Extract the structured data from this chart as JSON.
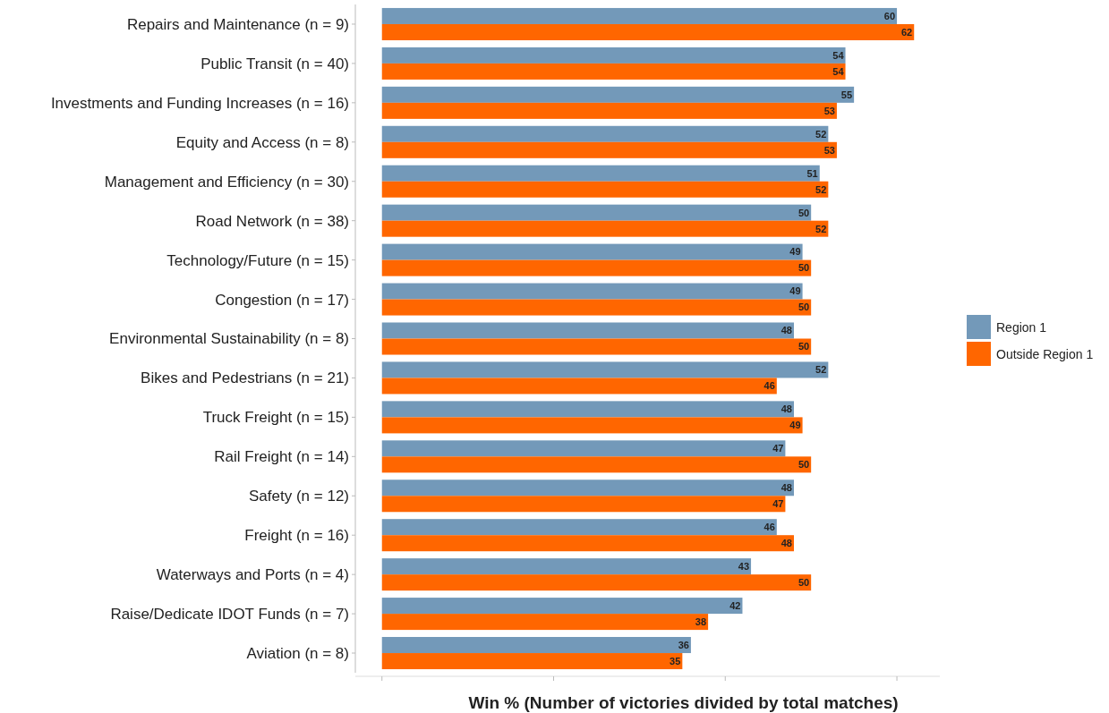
{
  "chart_data": {
    "type": "bar",
    "orientation": "horizontal",
    "xlabel": "Win % (Number of victories divided by total matches)",
    "categories": [
      "Repairs and Maintenance (n = 9)",
      "Public Transit (n = 40)",
      "Investments and Funding Increases (n = 16)",
      "Equity and Access (n = 8)",
      "Management and Efficiency (n = 30)",
      "Road Network (n = 38)",
      "Technology/Future (n = 15)",
      "Congestion (n = 17)",
      "Environmental Sustainability (n = 8)",
      "Bikes and Pedestrians (n = 21)",
      "Truck Freight (n = 15)",
      "Rail Freight (n = 14)",
      "Safety (n = 12)",
      "Freight (n = 16)",
      "Waterways and Ports (n = 4)",
      "Raise/Dedicate IDOT Funds (n = 7)",
      "Aviation (n = 8)"
    ],
    "series": [
      {
        "name": "Region 1",
        "color": "#7399b9",
        "values": [
          60,
          54,
          55,
          52,
          51,
          50,
          49,
          49,
          48,
          52,
          48,
          47,
          48,
          46,
          43,
          42,
          36
        ]
      },
      {
        "name": "Outside Region 1",
        "color": "#ff6600",
        "values": [
          62,
          54,
          53,
          53,
          52,
          52,
          50,
          50,
          50,
          46,
          49,
          50,
          47,
          48,
          50,
          38,
          35
        ]
      }
    ],
    "xlim": [
      -3.1,
      65
    ],
    "xticks": [
      {
        "value": 0,
        "label": null
      },
      {
        "value": 20,
        "label": null
      },
      {
        "value": 40,
        "label": null
      },
      {
        "value": 60,
        "label": null
      }
    ],
    "tick_labels": "y",
    "data_labels": true,
    "legend": "right",
    "grid": false
  }
}
